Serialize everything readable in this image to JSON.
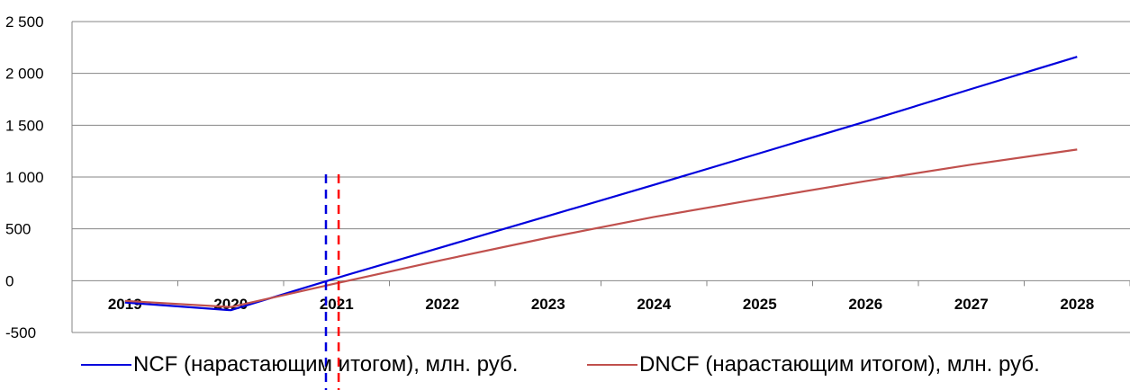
{
  "chart_data": {
    "type": "line",
    "categories": [
      "2019",
      "2020",
      "2021",
      "2022",
      "2023",
      "2024",
      "2025",
      "2026",
      "2027",
      "2028"
    ],
    "series": [
      {
        "name": "NCF (нарастающим итогом), млн. руб.",
        "color": "#0000dd",
        "values": [
          -210,
          -285,
          25,
          325,
          625,
          925,
          1230,
          1535,
          1850,
          2160
        ]
      },
      {
        "name": "DNCF (нарастающим итогом), млн. руб.",
        "color": "#c0504d",
        "values": [
          -195,
          -255,
          -25,
          200,
          415,
          615,
          790,
          960,
          1120,
          1265
        ]
      }
    ],
    "y_ticks": [
      "2 500",
      "2 000",
      "1 500",
      "1 000",
      "500",
      "0",
      "-500"
    ],
    "ylim": [
      -500,
      2500
    ],
    "grid": true,
    "legend_position": "bottom",
    "payback_markers": [
      {
        "x": 2020.9,
        "color": "#0000dd",
        "style": "dashed"
      },
      {
        "x": 2021.02,
        "color": "#ff0000",
        "style": "dashed"
      }
    ],
    "title": "",
    "xlabel": "",
    "ylabel": ""
  }
}
